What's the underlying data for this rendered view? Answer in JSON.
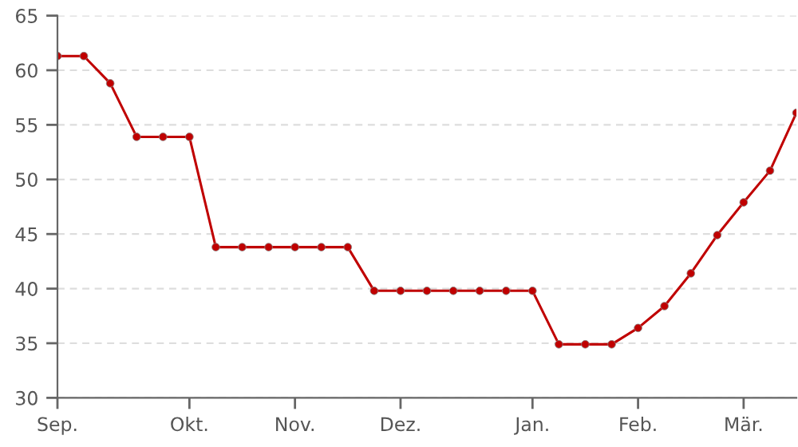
{
  "chart_data": {
    "type": "line",
    "categories": [
      "Sep.",
      null,
      null,
      null,
      null,
      "Okt.",
      null,
      null,
      null,
      "Nov.",
      null,
      null,
      null,
      "Dez.",
      null,
      null,
      null,
      null,
      "Jan.",
      null,
      null,
      null,
      "Feb.",
      null,
      null,
      null,
      "Mär.",
      null,
      null
    ],
    "series": [
      {
        "color": "#c00000",
        "values": [
          61.3,
          61.3,
          58.8,
          53.9,
          53.9,
          53.9,
          43.8,
          43.8,
          43.8,
          43.8,
          43.8,
          43.8,
          39.8,
          39.8,
          39.8,
          39.8,
          39.8,
          39.8,
          39.8,
          34.9,
          34.9,
          34.9,
          36.4,
          38.4,
          41.4,
          44.9,
          47.9,
          50.8,
          56.1
        ]
      }
    ],
    "ylim": [
      30,
      65
    ],
    "yticks": [
      30,
      35,
      40,
      45,
      50,
      55,
      60,
      65
    ],
    "grid": "y",
    "marker": "circle",
    "line_style": "solid"
  }
}
